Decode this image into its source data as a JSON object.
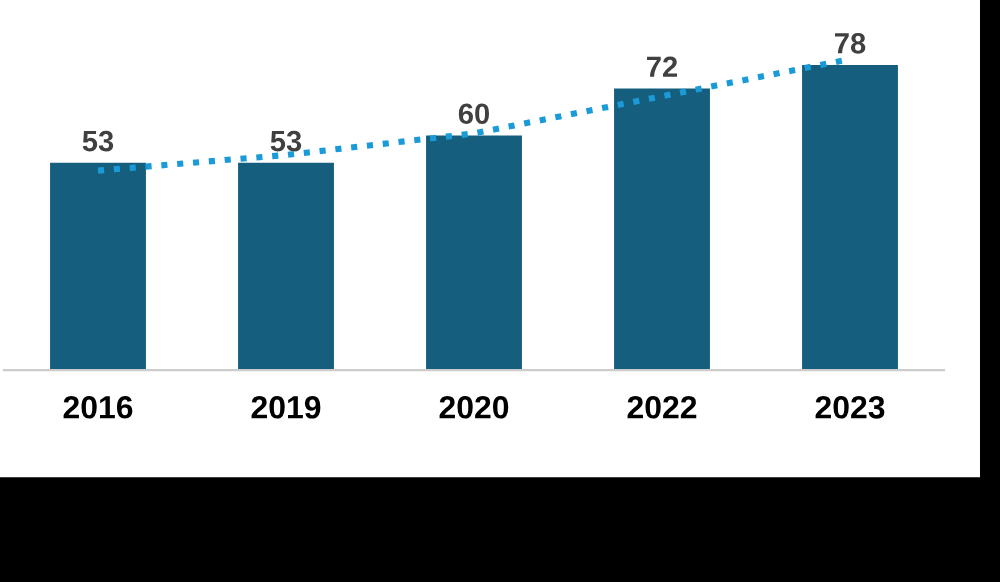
{
  "chart_data": {
    "type": "bar",
    "categories": [
      "2016",
      "2019",
      "2020",
      "2022",
      "2023"
    ],
    "series": [
      {
        "color": "#155e7e",
        "values": [
          53,
          53,
          60,
          72,
          78
        ],
        "value_labels": [
          "53",
          "53",
          "60",
          "72",
          "78"
        ]
      },
      {
        "type": "line",
        "color": "#1a9bd7",
        "values": [
          51,
          55,
          60.5,
          70,
          79.5
        ],
        "line_style": "dotted"
      }
    ],
    "tick_labels": "x"
  }
}
